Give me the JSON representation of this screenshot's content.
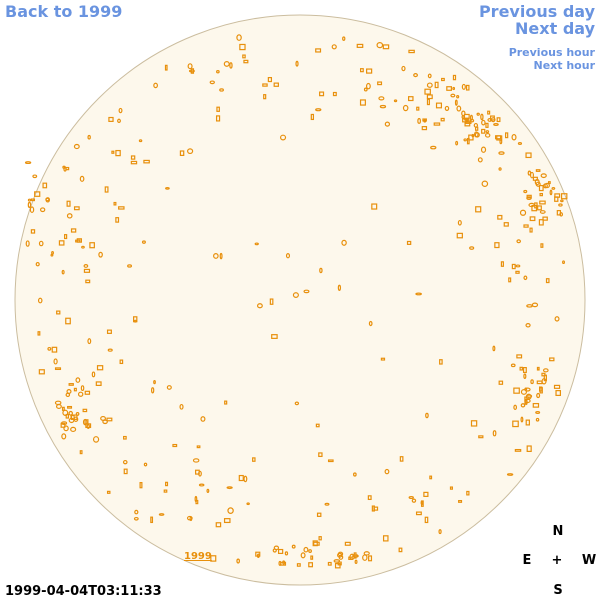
{
  "navigation": {
    "back": "Back to 1999",
    "previous_day": "Previous day",
    "next_day": "Next day",
    "previous_hour": "Previous hour",
    "next_hour": "Next hour"
  },
  "image": {
    "year_label": "1999",
    "timestamp": "1999-04-04T03:11:33"
  },
  "compass": {
    "north": "N",
    "east": "E",
    "center": "+",
    "west": "W",
    "south": "S"
  }
}
